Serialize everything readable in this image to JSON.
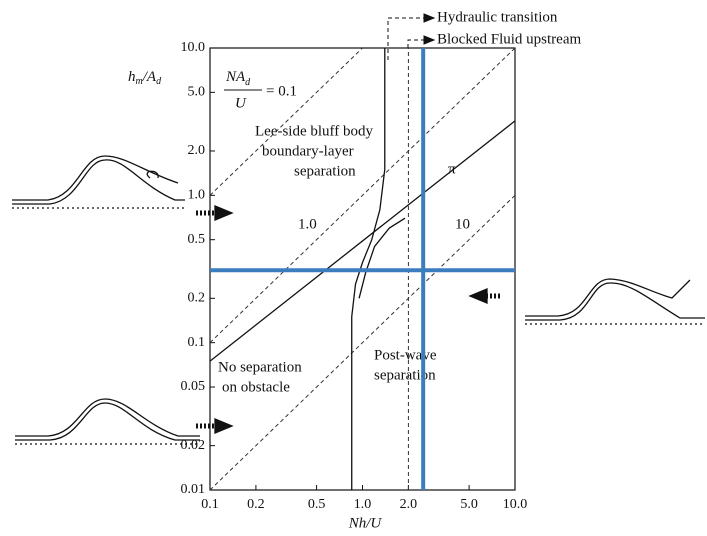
{
  "chart_data": {
    "type": "line",
    "x_label": [
      "Nh/U"
    ],
    "y_label": [
      "h",
      "m",
      "/A",
      "d"
    ],
    "ratio_label": [
      "NA",
      "d",
      "U",
      "= 0.1"
    ],
    "annotations": [
      "Lee-side bluff body",
      "boundary-layer",
      "separation",
      "No separation",
      "on obstacle",
      "Post-wave",
      "separation",
      "Hydraulic transition",
      "Blocked Fluid upstream"
    ],
    "log_x": true,
    "log_y": true,
    "xlim": [
      0.1,
      10
    ],
    "ylim": [
      0.01,
      10
    ],
    "xticks": [
      0.1,
      0.2,
      0.5,
      {
        "value": 1,
        "label": "1.0"
      },
      {
        "value": 2,
        "label": "2.0"
      },
      {
        "value": 5,
        "label": "5.0"
      },
      {
        "value": 10,
        "label": "10.0"
      }
    ],
    "yticks": [
      0.01,
      0.02,
      0.05,
      0.1,
      0.2,
      0.5,
      {
        "value": 1,
        "label": "1.0"
      },
      {
        "value": 2,
        "label": "2.0"
      },
      {
        "value": 5,
        "label": "5.0"
      },
      {
        "value": 10,
        "label": "10.0"
      }
    ],
    "series": [
      {
        "x": [
          0.1,
          1
        ],
        "values": [
          1,
          10
        ],
        "color": "#333333",
        "style": "dashed",
        "width": 1
      },
      {
        "name": "1.0",
        "x": [
          0.1,
          10
        ],
        "values": [
          0.1,
          10
        ],
        "color": "#333333",
        "style": "dashed",
        "width": 1
      },
      {
        "name": "10",
        "x": [
          0.1,
          10
        ],
        "values": [
          0.01,
          1
        ],
        "color": "#333333",
        "style": "dashed",
        "width": 1
      },
      {
        "name": "π",
        "x": [
          0.1,
          10
        ],
        "values": [
          0.075,
          3.2
        ],
        "color": "#111111",
        "style": "solid",
        "width": 1.3
      },
      {
        "x": [
          0.85,
          0.85,
          0.9,
          1.0,
          1.15,
          1.3,
          1.4,
          1.4
        ],
        "values": [
          0.01,
          0.15,
          0.25,
          0.35,
          0.5,
          0.8,
          1.5,
          10
        ],
        "color": "#111111",
        "style": "solid",
        "width": 1.3
      },
      {
        "x": [
          0.95,
          1.05,
          1.2,
          1.5,
          1.9
        ],
        "values": [
          0.2,
          0.3,
          0.45,
          0.6,
          0.7
        ],
        "color": "#111111",
        "style": "solid",
        "width": 1.3
      },
      {
        "x": [
          2,
          2
        ],
        "values": [
          0.01,
          10
        ],
        "color": "#333333",
        "style": "dashed",
        "width": 1
      },
      {
        "x": [
          2.5,
          2.5
        ],
        "values": [
          0.01,
          10
        ],
        "color": "#3a7ebf",
        "style": "solid",
        "width": 4
      },
      {
        "x": [
          0.1,
          10
        ],
        "values": [
          0.31,
          0.31
        ],
        "color": "#3a7ebf",
        "style": "solid",
        "width": 4
      }
    ]
  }
}
